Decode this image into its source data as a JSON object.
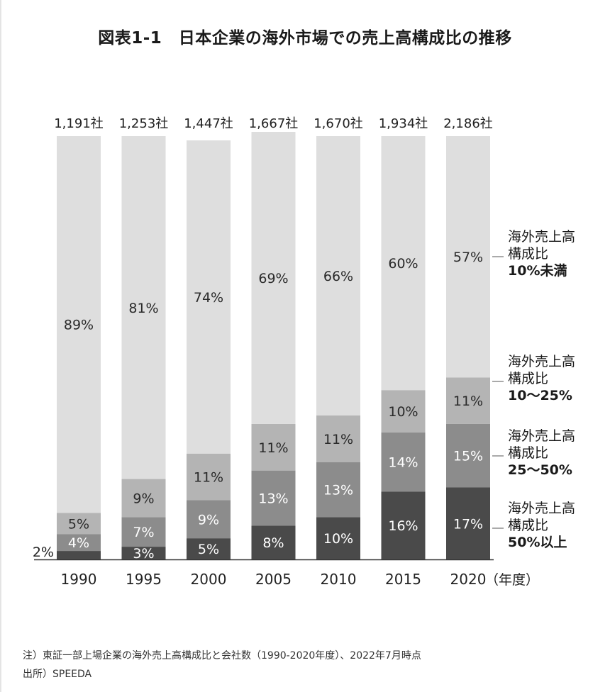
{
  "title": "図表1-1　日本企業の海外市場での売上高構成比の推移",
  "footnotes": {
    "note": "注）東証一部上場企業の海外売上高構成比と会社数（1990-2020年度）、2022年7月時点",
    "source": "出所）SPEEDA"
  },
  "chart_data": {
    "type": "bar",
    "stacked": true,
    "percent_stacked": true,
    "categories": [
      "1990",
      "1995",
      "2000",
      "2005",
      "2010",
      "2015",
      "2020"
    ],
    "x_unit_label": "（年度）",
    "company_counts": [
      "1,191社",
      "1,253社",
      "1,447社",
      "1,667社",
      "1,670社",
      "1,934社",
      "2,186社"
    ],
    "series": [
      {
        "name": "海外売上高構成比50%以上",
        "label_lines": [
          "海外売上高",
          "構成比",
          "50%以上"
        ],
        "values": [
          2,
          3,
          5,
          8,
          10,
          16,
          17
        ],
        "labels": [
          "2%",
          "3%",
          "5%",
          "8%",
          "10%",
          "16%",
          "17%"
        ],
        "color": "#4a4a4a"
      },
      {
        "name": "海外売上高構成比25～50%",
        "label_lines": [
          "海外売上高",
          "構成比",
          "25～50%"
        ],
        "values": [
          4,
          7,
          9,
          13,
          13,
          14,
          15
        ],
        "labels": [
          "4%",
          "7%",
          "9%",
          "13%",
          "13%",
          "14%",
          "15%"
        ],
        "color": "#8c8c8c"
      },
      {
        "name": "海外売上高構成比10～25%",
        "label_lines": [
          "海外売上高",
          "構成比",
          "10～25%"
        ],
        "values": [
          5,
          9,
          11,
          11,
          11,
          10,
          11
        ],
        "labels": [
          "5%",
          "9%",
          "11%",
          "11%",
          "11%",
          "10%",
          "11%"
        ],
        "color": "#b4b4b4"
      },
      {
        "name": "海外売上高構成比10%未満",
        "label_lines": [
          "海外売上高",
          "構成比",
          "10%未満"
        ],
        "values": [
          89,
          81,
          74,
          69,
          66,
          60,
          57
        ],
        "labels": [
          "89%",
          "81%",
          "74%",
          "69%",
          "66%",
          "60%",
          "57%"
        ],
        "color": "#dedede"
      }
    ],
    "ylim": [
      0,
      100
    ],
    "grid": false,
    "legend": "right"
  }
}
